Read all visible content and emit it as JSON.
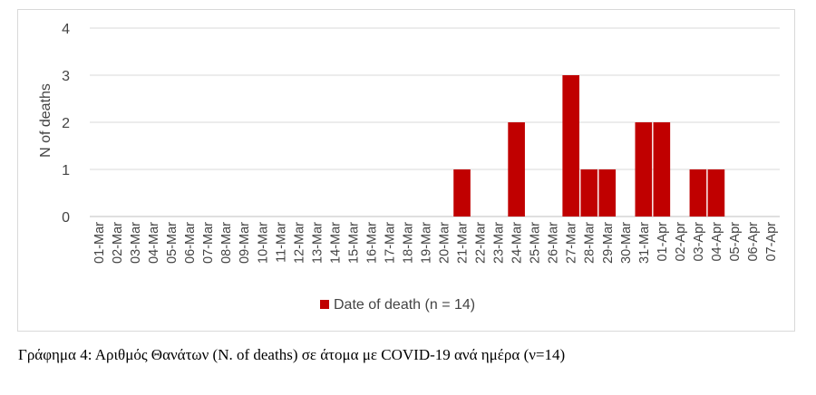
{
  "chart_data": {
    "type": "bar",
    "ylabel": "N of deaths",
    "xlabel": "",
    "ylim": [
      0,
      4
    ],
    "yticks": [
      0,
      1,
      2,
      3,
      4
    ],
    "grid": true,
    "legend_position": "bottom",
    "categories": [
      "01-Mar",
      "02-Mar",
      "03-Mar",
      "04-Mar",
      "05-Mar",
      "06-Mar",
      "07-Mar",
      "08-Mar",
      "09-Mar",
      "10-Mar",
      "11-Mar",
      "12-Mar",
      "13-Mar",
      "14-Mar",
      "15-Mar",
      "16-Mar",
      "17-Mar",
      "18-Mar",
      "19-Mar",
      "20-Mar",
      "21-Mar",
      "22-Mar",
      "23-Mar",
      "24-Mar",
      "25-Mar",
      "26-Mar",
      "27-Mar",
      "28-Mar",
      "29-Mar",
      "30-Mar",
      "31-Mar",
      "01-Apr",
      "02-Apr",
      "03-Apr",
      "04-Apr",
      "05-Apr",
      "06-Apr",
      "07-Apr"
    ],
    "series": [
      {
        "name": "Date of death (n = 14)",
        "color": "#c00000",
        "values": [
          0,
          0,
          0,
          0,
          0,
          0,
          0,
          0,
          0,
          0,
          0,
          0,
          0,
          0,
          0,
          0,
          0,
          0,
          0,
          0,
          1,
          0,
          0,
          2,
          0,
          0,
          3,
          1,
          1,
          0,
          2,
          2,
          0,
          1,
          1,
          0,
          0,
          0
        ]
      }
    ]
  },
  "caption": "Γράφημα 4: Αριθμός Θανάτων (N. of deaths) σε άτομα με COVID-19 ανά ημέρα (ν=14)"
}
